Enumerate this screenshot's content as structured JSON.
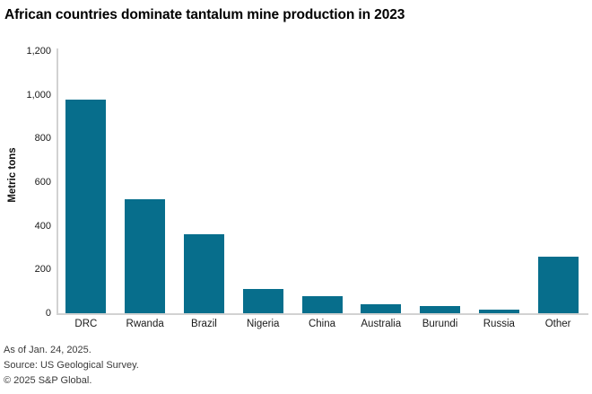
{
  "title": "African countries dominate tantalum mine production in 2023",
  "chart_data": {
    "type": "bar",
    "title": "African countries dominate tantalum mine production in 2023",
    "categories": [
      "DRC",
      "Rwanda",
      "Brazil",
      "Nigeria",
      "China",
      "Australia",
      "Burundi",
      "Russia",
      "Other"
    ],
    "values": [
      980,
      520,
      360,
      110,
      77,
      43,
      34,
      18,
      258
    ],
    "xlabel": "",
    "ylabel": "Metric tons",
    "ylim": [
      0,
      1200
    ],
    "ytick_step": 200,
    "ytick_labels": [
      "0",
      "200",
      "400",
      "600",
      "800",
      "1,000",
      "1,200"
    ],
    "grid": false,
    "legend": false,
    "bar_color": "#076e8c",
    "axis_color": "#d2d2d2"
  },
  "footer": {
    "as_of": "As of Jan. 24, 2025.",
    "source": "Source: US Geological Survey.",
    "copyright": "© 2025 S&P Global."
  }
}
